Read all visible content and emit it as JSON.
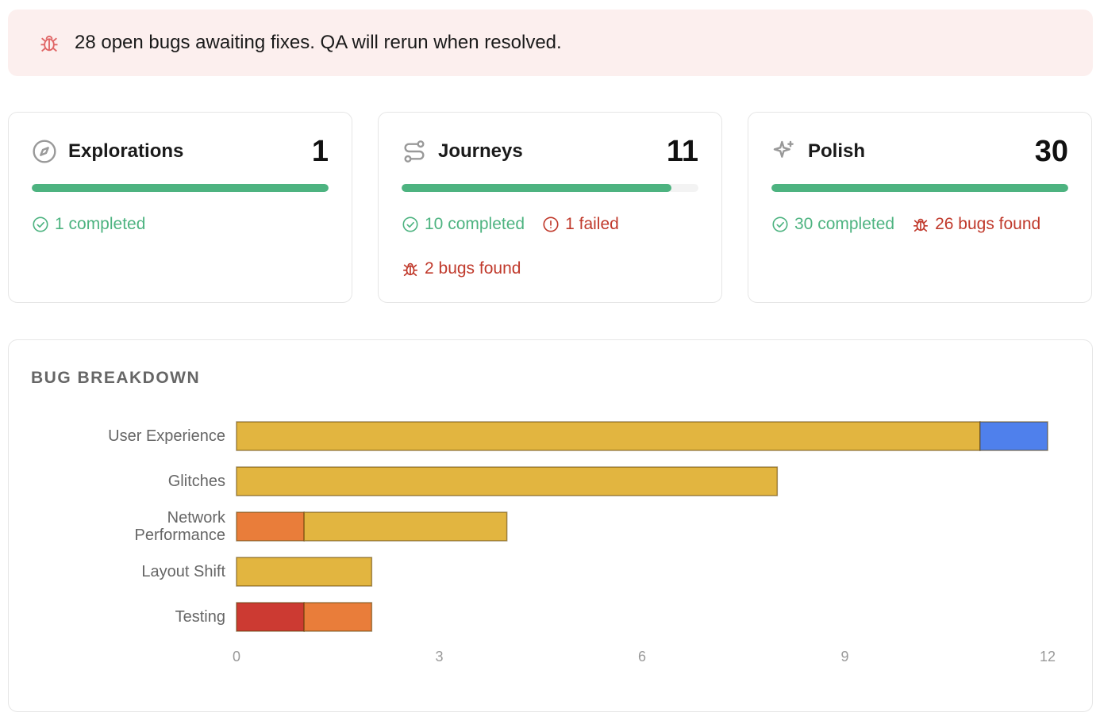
{
  "banner": {
    "text": "28 open bugs awaiting fixes. QA will rerun when resolved."
  },
  "cards": [
    {
      "title": "Explorations",
      "total": 1,
      "completed": 1,
      "stats": [
        {
          "status": "completed",
          "label": "1 completed"
        }
      ]
    },
    {
      "title": "Journeys",
      "total": 11,
      "completed": 10,
      "stats": [
        {
          "status": "completed",
          "label": "10 completed"
        },
        {
          "status": "failed",
          "label": "1 failed"
        },
        {
          "status": "bugs",
          "label": "2 bugs found"
        }
      ]
    },
    {
      "title": "Polish",
      "total": 30,
      "completed": 30,
      "stats": [
        {
          "status": "completed",
          "label": "30 completed"
        },
        {
          "status": "bugs",
          "label": "26 bugs found"
        }
      ]
    }
  ],
  "chart_data": {
    "type": "stacked-bar-horizontal",
    "title": "BUG BREAKDOWN",
    "categories": [
      "User Experience",
      "Glitches",
      "Network Performance",
      "Layout Shift",
      "Testing"
    ],
    "series": [
      {
        "color": "#cc3a32",
        "values": [
          0,
          0,
          0,
          0,
          1
        ]
      },
      {
        "color": "#e97d3a",
        "values": [
          0,
          0,
          1,
          0,
          1
        ]
      },
      {
        "color": "#e2b540",
        "values": [
          11,
          8,
          3,
          2,
          0
        ]
      },
      {
        "color": "#4f80ec",
        "values": [
          1,
          0,
          0,
          0,
          0
        ]
      }
    ],
    "xlim": [
      0,
      12
    ],
    "xticks": [
      0,
      3,
      6,
      9,
      12
    ],
    "grid": false
  }
}
